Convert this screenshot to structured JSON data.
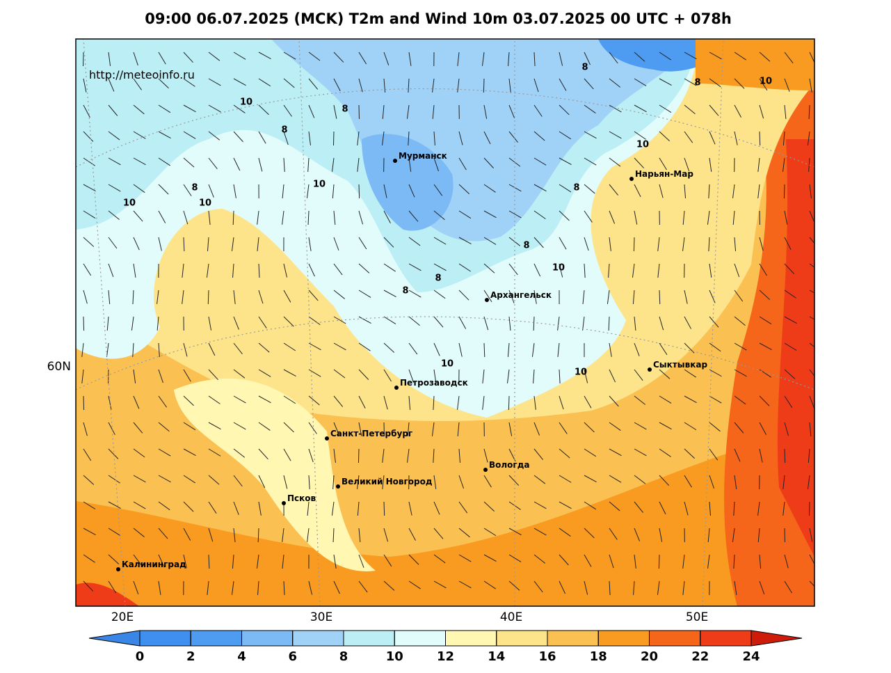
{
  "title": "09:00 06.07.2025 (MCK) T2m and Wind 10m 03.07.2025 00 UTC + 078h",
  "watermark": "http://meteoinfo.ru",
  "cities": [
    "Мурманск",
    "Нарьян-Мар",
    "Архангельск",
    "Сыктывкар",
    "Петрозаводск",
    "Санкт-Петербург",
    "Вологда",
    "Великий Новгород",
    "Псков",
    "Калининград"
  ],
  "contour_labels": [
    10,
    8,
    8,
    10,
    8,
    10,
    10,
    8,
    8,
    10,
    10,
    8,
    8,
    10,
    8,
    8,
    10,
    10
  ],
  "latitude_labels": [
    "60N"
  ],
  "longitude_labels": [
    "20E",
    "30E",
    "40E",
    "50E"
  ],
  "colorbar": {
    "ticks": [
      0,
      2,
      4,
      6,
      8,
      10,
      12,
      14,
      16,
      18,
      20,
      22,
      24
    ],
    "colors": [
      "#3a86e6",
      "#3f8ff0",
      "#4d9cf2",
      "#7bbaf5",
      "#a0d2f8",
      "#bceef6",
      "#e2fcfc",
      "#fff7b2",
      "#fde48a",
      "#fbc052",
      "#f99b20",
      "#f5651a",
      "#ef3c18",
      "#cf1b0a"
    ]
  }
}
